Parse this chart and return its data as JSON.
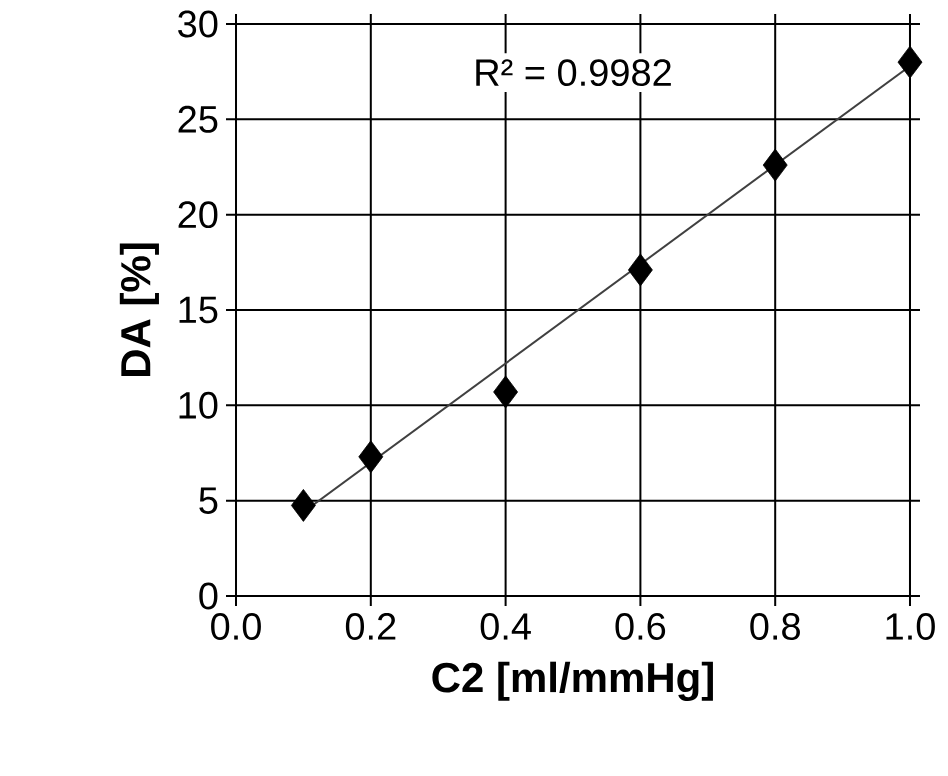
{
  "chart_data": {
    "type": "scatter",
    "xlabel": "C2 [ml/mmHg]",
    "ylabel": "DA [%]",
    "xlim": [
      0,
      1
    ],
    "ylim": [
      0,
      30
    ],
    "xticks": [
      {
        "value": 0,
        "label": "0.0"
      },
      {
        "value": 0.2,
        "label": "0.2"
      },
      {
        "value": 0.4,
        "label": "0.4"
      },
      {
        "value": 0.6,
        "label": "0.6"
      },
      {
        "value": 0.8,
        "label": "0.8"
      },
      {
        "value": 1,
        "label": "1.0"
      }
    ],
    "yticks": [
      0,
      5,
      10,
      15,
      20,
      25,
      30
    ],
    "grid": true,
    "marker": "diamond",
    "annotations": [
      "R² = 0.9982"
    ],
    "series": [
      {
        "color": "#000000",
        "x": [
          0.1,
          0.2,
          0.4,
          0.6,
          0.8,
          1.0
        ],
        "values": [
          4.75,
          7.3,
          10.7,
          17.1,
          22.6,
          28.0
        ]
      },
      {
        "type": "line",
        "color": "#404040",
        "marker": "none",
        "line_style": "solid",
        "x": [
          0.1,
          1.0
        ],
        "values": [
          4.4,
          27.8
        ]
      }
    ]
  }
}
